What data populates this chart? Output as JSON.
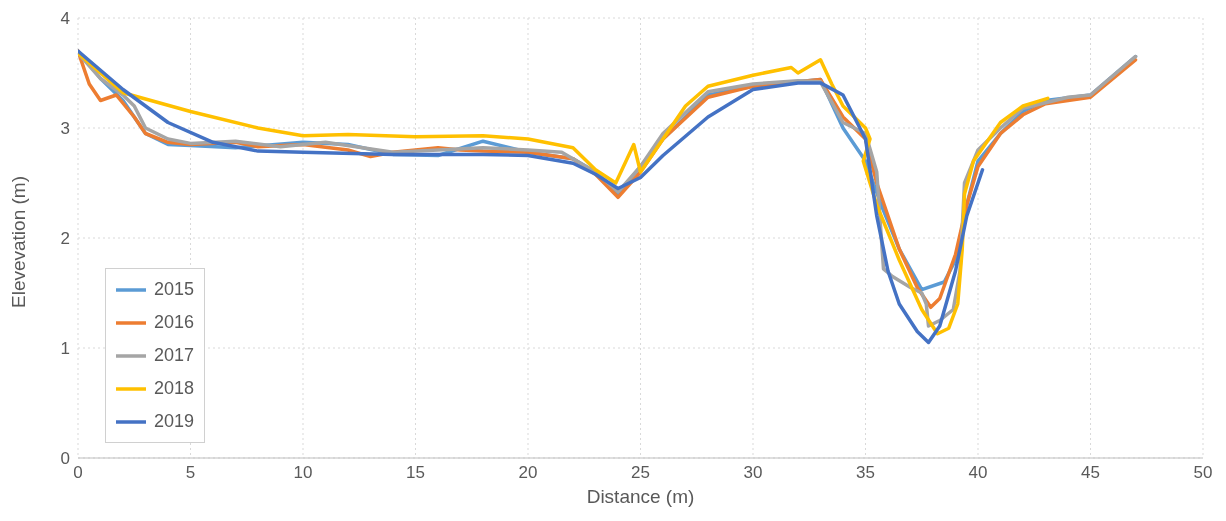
{
  "chart_data": {
    "type": "line",
    "xlabel": "Distance (m)",
    "ylabel": "Elevevation (m)",
    "xlim": [
      0,
      50
    ],
    "xticks": [
      0,
      5,
      10,
      15,
      20,
      25,
      30,
      35,
      40,
      45,
      50
    ],
    "ylim": [
      0,
      4
    ],
    "yticks": [
      0,
      1,
      2,
      3,
      4
    ],
    "grid": true,
    "legend": "bottom left",
    "marker": "none",
    "line_style": "solid",
    "series": [
      {
        "name": "2015",
        "color": "#5b9bd5",
        "x": [
          0,
          1,
          2,
          3,
          4,
          5,
          7,
          10,
          12,
          14,
          16,
          18,
          20,
          22,
          23,
          24,
          25,
          26,
          28,
          30,
          32,
          33,
          34,
          35,
          35.7,
          36.5,
          37.5,
          38.5,
          39,
          39.5,
          40,
          41,
          42,
          43,
          45,
          47
        ],
        "values": [
          3.7,
          3.45,
          3.25,
          2.95,
          2.85,
          2.84,
          2.82,
          2.87,
          2.85,
          2.76,
          2.75,
          2.88,
          2.78,
          2.72,
          2.6,
          2.4,
          2.65,
          2.9,
          3.3,
          3.38,
          3.42,
          3.44,
          3.0,
          2.7,
          2.3,
          1.9,
          1.53,
          1.6,
          1.8,
          2.3,
          2.7,
          2.95,
          3.15,
          3.25,
          3.3,
          3.65
        ]
      },
      {
        "name": "2016",
        "color": "#ed7d31",
        "x": [
          0,
          0.5,
          1,
          1.7,
          2.5,
          3,
          4,
          5,
          7,
          8,
          10,
          12,
          13,
          14,
          15,
          16,
          17,
          18,
          20,
          22,
          23,
          24,
          25,
          26,
          28,
          30,
          32,
          33,
          34,
          35,
          35.5,
          36.5,
          37.3,
          37.9,
          38.3,
          39,
          39.5,
          40,
          41,
          42,
          43,
          45,
          47
        ],
        "values": [
          3.7,
          3.4,
          3.25,
          3.3,
          3.1,
          2.95,
          2.87,
          2.85,
          2.87,
          2.83,
          2.85,
          2.8,
          2.74,
          2.78,
          2.8,
          2.82,
          2.8,
          2.79,
          2.78,
          2.72,
          2.58,
          2.37,
          2.6,
          2.9,
          3.28,
          3.38,
          3.42,
          3.44,
          3.1,
          2.9,
          2.5,
          1.9,
          1.55,
          1.37,
          1.45,
          1.85,
          2.3,
          2.65,
          2.95,
          3.12,
          3.22,
          3.28,
          3.62
        ]
      },
      {
        "name": "2017",
        "color": "#a5a5a5",
        "x": [
          0,
          1,
          2,
          2.5,
          3,
          4,
          5,
          7,
          9,
          11,
          14,
          16,
          18,
          20,
          21.5,
          23,
          24,
          25,
          26,
          28,
          30,
          32,
          33,
          34,
          35,
          35.5,
          35.8,
          36.2,
          37,
          37.5,
          37.7,
          37.8,
          38.3,
          38.9,
          39.2,
          39.4,
          40,
          41,
          42,
          44,
          45,
          47
        ],
        "values": [
          3.68,
          3.45,
          3.3,
          3.2,
          3.0,
          2.9,
          2.86,
          2.88,
          2.83,
          2.87,
          2.78,
          2.8,
          2.82,
          2.8,
          2.78,
          2.6,
          2.42,
          2.65,
          2.95,
          3.33,
          3.4,
          3.43,
          3.42,
          3.05,
          2.95,
          2.6,
          1.72,
          1.65,
          1.55,
          1.5,
          1.4,
          1.2,
          1.25,
          1.35,
          1.7,
          2.5,
          2.8,
          3.0,
          3.18,
          3.28,
          3.3,
          3.65
        ]
      },
      {
        "name": "2018",
        "color": "#ffc000",
        "x": [
          0,
          2,
          5,
          8,
          10,
          12,
          15,
          18,
          20,
          22,
          23,
          23.9,
          24.7,
          25,
          26,
          27,
          28,
          30,
          31.7,
          32,
          33,
          33.5,
          34,
          35,
          35.2,
          34.9,
          35.5,
          36.5,
          37.5,
          38.2,
          38.7,
          39.1,
          39.3,
          39.4,
          39.8,
          41,
          42,
          43.1
        ],
        "values": [
          3.68,
          3.32,
          3.15,
          3.0,
          2.93,
          2.94,
          2.92,
          2.93,
          2.9,
          2.82,
          2.62,
          2.5,
          2.85,
          2.6,
          2.9,
          3.2,
          3.38,
          3.48,
          3.55,
          3.5,
          3.62,
          3.4,
          3.2,
          3.0,
          2.9,
          2.7,
          2.3,
          1.8,
          1.35,
          1.13,
          1.18,
          1.4,
          1.9,
          2.4,
          2.7,
          3.05,
          3.2,
          3.27
        ]
      },
      {
        "name": "2019",
        "color": "#4472c4",
        "x": [
          0,
          2,
          4,
          6,
          8,
          10,
          14,
          18,
          20,
          22,
          23,
          24,
          25,
          26,
          28,
          30,
          32,
          33,
          34,
          35,
          35.5,
          36,
          36.5,
          37.3,
          37.8,
          38.3,
          39,
          39.5,
          40.2
        ],
        "values": [
          3.7,
          3.35,
          3.05,
          2.87,
          2.79,
          2.78,
          2.76,
          2.76,
          2.75,
          2.68,
          2.58,
          2.45,
          2.55,
          2.75,
          3.1,
          3.35,
          3.41,
          3.41,
          3.3,
          2.9,
          2.2,
          1.7,
          1.4,
          1.15,
          1.05,
          1.2,
          1.7,
          2.2,
          2.62
        ]
      }
    ]
  }
}
